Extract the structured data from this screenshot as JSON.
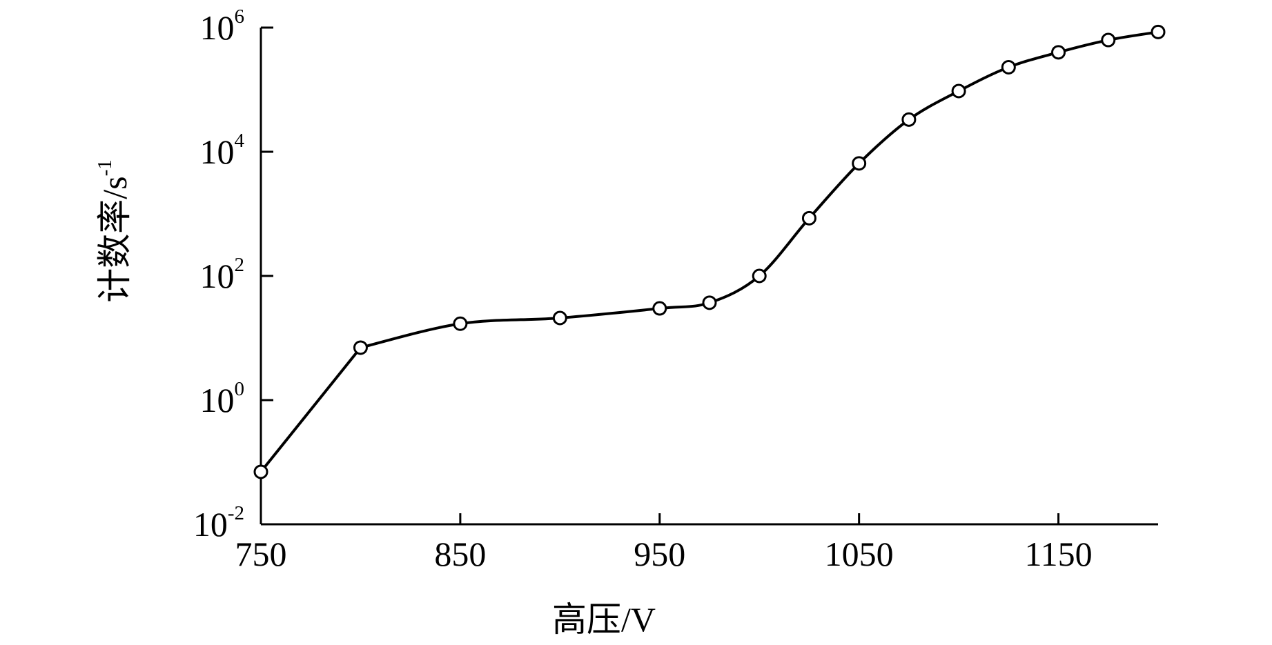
{
  "chart_data": {
    "type": "line",
    "title": "",
    "xlabel": "高压/V",
    "ylabel": {
      "base": "计数率/s",
      "exp": "-1"
    },
    "xlim": [
      750,
      1200
    ],
    "ylim": [
      0.01,
      1000000
    ],
    "yscale": "log",
    "x_ticks": [
      750,
      850,
      950,
      1050,
      1150
    ],
    "x_tick_labels": [
      "750",
      "850",
      "950",
      "1050",
      "1150"
    ],
    "y_ticks": [
      {
        "value": 0.01,
        "base": "10",
        "exp": "-2"
      },
      {
        "value": 1,
        "base": "10",
        "exp": "0"
      },
      {
        "value": 100,
        "base": "10",
        "exp": "2"
      },
      {
        "value": 10000,
        "base": "10",
        "exp": "4"
      },
      {
        "value": 1000000,
        "base": "10",
        "exp": "6"
      }
    ],
    "grid": false,
    "legend": "none",
    "series": [
      {
        "marker": "open-circle",
        "color": "#000000",
        "points": [
          {
            "x": 750,
            "y": 0.07
          },
          {
            "x": 800,
            "y": 7
          },
          {
            "x": 850,
            "y": 17
          },
          {
            "x": 900,
            "y": 21
          },
          {
            "x": 950,
            "y": 30
          },
          {
            "x": 975,
            "y": 37
          },
          {
            "x": 1000,
            "y": 100
          },
          {
            "x": 1025,
            "y": 850
          },
          {
            "x": 1050,
            "y": 6500
          },
          {
            "x": 1075,
            "y": 33000
          },
          {
            "x": 1100,
            "y": 95000
          },
          {
            "x": 1125,
            "y": 230000
          },
          {
            "x": 1150,
            "y": 400000
          },
          {
            "x": 1175,
            "y": 630000
          },
          {
            "x": 1200,
            "y": 850000
          }
        ]
      }
    ]
  }
}
